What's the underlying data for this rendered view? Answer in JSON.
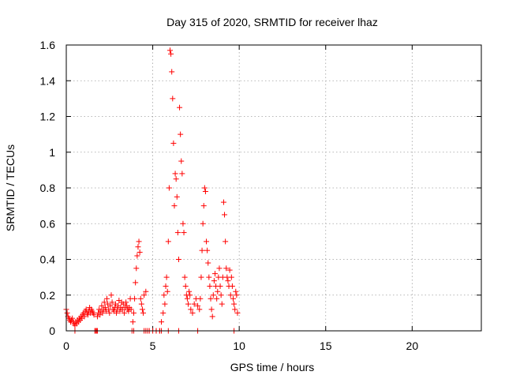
{
  "chart_data": {
    "type": "scatter",
    "title": "Day 315 of 2020, SRMTID for receiver lhaz",
    "xlabel": "GPS time / hours",
    "ylabel": "SRMTID / TECUs",
    "xlim": [
      0,
      24
    ],
    "ylim": [
      0,
      1.6
    ],
    "xticks": [
      0,
      5,
      10,
      15,
      20
    ],
    "yticks": [
      0,
      0.2,
      0.4,
      0.6,
      0.8,
      1,
      1.2,
      1.4,
      1.6
    ],
    "xtick_labels": [
      "0",
      "5",
      "10",
      "15",
      "20"
    ],
    "ytick_labels": [
      "0",
      "0.2",
      "0.4",
      "0.6",
      "0.8",
      "1",
      "1.2",
      "1.4",
      "1.6"
    ],
    "grid": true,
    "marker": "+",
    "color": "#ff0000",
    "series": [
      {
        "name": "SRMTID",
        "x": [
          0.0,
          0.05,
          0.1,
          0.15,
          0.2,
          0.25,
          0.3,
          0.35,
          0.4,
          0.45,
          0.5,
          0.55,
          0.6,
          0.65,
          0.7,
          0.75,
          0.8,
          0.85,
          0.9,
          0.95,
          1.0,
          1.05,
          1.1,
          1.15,
          1.2,
          1.25,
          1.3,
          1.35,
          1.4,
          1.45,
          1.5,
          1.55,
          1.6,
          1.7,
          1.75,
          1.8,
          1.85,
          1.9,
          1.95,
          2.0,
          2.05,
          2.1,
          2.15,
          2.2,
          2.25,
          2.3,
          2.35,
          2.4,
          2.45,
          2.5,
          2.55,
          2.6,
          2.65,
          2.7,
          2.75,
          2.8,
          2.85,
          2.9,
          2.95,
          3.0,
          3.05,
          3.1,
          3.15,
          3.2,
          3.25,
          3.3,
          3.35,
          3.4,
          3.45,
          3.5,
          3.55,
          3.6,
          3.65,
          3.7,
          3.75,
          3.8,
          3.85,
          3.9,
          3.95,
          4.0,
          4.05,
          4.1,
          4.15,
          4.2,
          4.25,
          4.3,
          4.35,
          4.4,
          4.45,
          4.5,
          4.6,
          4.7,
          4.8,
          5.0,
          5.2,
          5.4,
          5.5,
          5.6,
          5.65,
          5.7,
          5.75,
          5.8,
          5.85,
          5.9,
          5.95,
          6.0,
          6.05,
          6.1,
          6.15,
          6.2,
          6.25,
          6.3,
          6.35,
          6.4,
          6.45,
          6.5,
          6.55,
          6.6,
          6.65,
          6.7,
          6.75,
          6.8,
          6.85,
          6.9,
          6.95,
          7.0,
          7.05,
          7.1,
          7.15,
          7.2,
          7.3,
          7.4,
          7.5,
          7.6,
          7.7,
          7.75,
          7.8,
          7.85,
          7.9,
          7.95,
          8.0,
          8.05,
          8.1,
          8.15,
          8.2,
          8.25,
          8.3,
          8.35,
          8.4,
          8.45,
          8.5,
          8.55,
          8.6,
          8.65,
          8.7,
          8.75,
          8.8,
          8.85,
          8.9,
          8.95,
          9.0,
          9.05,
          9.1,
          9.15,
          9.2,
          9.25,
          9.3,
          9.35,
          9.4,
          9.45,
          9.5,
          9.55,
          9.6,
          9.65,
          9.7,
          9.75,
          9.8,
          9.85,
          9.9,
          0.5,
          1.65,
          1.8,
          3.9,
          4.5,
          4.6,
          5.2,
          5.4,
          5.5,
          5.9,
          6.5,
          7.6,
          9.7
        ],
        "y": [
          0.12,
          0.1,
          0.08,
          0.07,
          0.06,
          0.05,
          0.06,
          0.07,
          0.05,
          0.04,
          0.03,
          0.05,
          0.04,
          0.06,
          0.05,
          0.07,
          0.06,
          0.08,
          0.07,
          0.09,
          0.1,
          0.08,
          0.11,
          0.12,
          0.1,
          0.09,
          0.11,
          0.13,
          0.1,
          0.12,
          0.11,
          0.1,
          0.09,
          0.0,
          0.0,
          0.08,
          0.1,
          0.12,
          0.09,
          0.11,
          0.14,
          0.1,
          0.12,
          0.16,
          0.13,
          0.11,
          0.18,
          0.15,
          0.12,
          0.1,
          0.14,
          0.2,
          0.16,
          0.12,
          0.11,
          0.13,
          0.15,
          0.1,
          0.12,
          0.14,
          0.17,
          0.11,
          0.13,
          0.16,
          0.12,
          0.15,
          0.1,
          0.13,
          0.16,
          0.14,
          0.12,
          0.11,
          0.13,
          0.18,
          0.12,
          0.0,
          0.05,
          0.1,
          0.18,
          0.27,
          0.35,
          0.42,
          0.47,
          0.5,
          0.44,
          0.18,
          0.15,
          0.12,
          0.1,
          0.2,
          0.22,
          0.0,
          0.0,
          0.0,
          0.0,
          0.0,
          0.05,
          0.1,
          0.2,
          0.15,
          0.25,
          0.3,
          0.22,
          0.5,
          0.8,
          1.57,
          1.55,
          1.45,
          1.3,
          1.05,
          0.7,
          0.88,
          0.85,
          0.75,
          0.55,
          0.4,
          1.25,
          1.1,
          0.95,
          0.88,
          0.6,
          0.55,
          0.3,
          0.25,
          0.2,
          0.18,
          0.15,
          0.22,
          0.2,
          0.12,
          0.1,
          0.15,
          0.18,
          0.14,
          0.12,
          0.18,
          0.3,
          0.45,
          0.6,
          0.7,
          0.8,
          0.78,
          0.5,
          0.45,
          0.38,
          0.3,
          0.25,
          0.18,
          0.12,
          0.08,
          0.2,
          0.28,
          0.32,
          0.25,
          0.18,
          0.22,
          0.3,
          0.35,
          0.25,
          0.2,
          0.15,
          0.3,
          0.72,
          0.65,
          0.5,
          0.35,
          0.3,
          0.28,
          0.25,
          0.34,
          0.2,
          0.3,
          0.25,
          0.18,
          0.15,
          0.12,
          0.22,
          0.2,
          0.1,
          0.0,
          0.0,
          0.0,
          0.0,
          0.0,
          0.0,
          0.0,
          0.0,
          0.0,
          0.0,
          0.0,
          0.0,
          0.0
        ]
      }
    ]
  }
}
